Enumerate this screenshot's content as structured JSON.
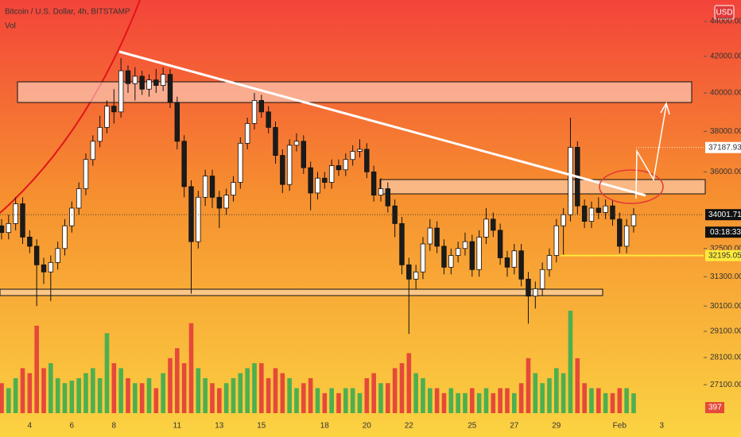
{
  "chart_data": {
    "type": "candlestick",
    "title": "Bitcoin / U.S. Dollar, 4h, BITSTAMP",
    "currency": "USD",
    "log_scale": true,
    "ylim": [
      26090,
      45280
    ],
    "yticks": [
      {
        "value": 44000,
        "label": "44000.00"
      },
      {
        "value": 42000,
        "label": "42000.00"
      },
      {
        "value": 40000,
        "label": "40000.00"
      },
      {
        "value": 38000,
        "label": "38000.00"
      },
      {
        "value": 36000,
        "label": "36000.00"
      },
      {
        "value": 32500,
        "label": "32500.00"
      },
      {
        "value": 31300,
        "label": "31300.00"
      },
      {
        "value": 30100,
        "label": "30100.00"
      },
      {
        "value": 29100,
        "label": "29100.00"
      },
      {
        "value": 28100,
        "label": "28100.00"
      },
      {
        "value": 27100,
        "label": "27100.00"
      }
    ],
    "categories": [
      null,
      null,
      null,
      null,
      "4",
      null,
      null,
      null,
      null,
      null,
      "6",
      null,
      null,
      null,
      null,
      null,
      "8",
      null,
      null,
      null,
      null,
      null,
      null,
      null,
      null,
      "11",
      null,
      null,
      null,
      null,
      null,
      "13",
      null,
      null,
      null,
      null,
      null,
      "15",
      null,
      null,
      null,
      null,
      null,
      null,
      null,
      null,
      "18",
      null,
      null,
      null,
      null,
      null,
      "20",
      null,
      null,
      null,
      null,
      null,
      "22",
      null,
      null,
      null,
      null,
      null,
      null,
      null,
      null,
      "25",
      null,
      null,
      null,
      null,
      null,
      "27",
      null,
      null,
      null,
      null,
      null,
      "29",
      null,
      null,
      null,
      null,
      null,
      null,
      null,
      null,
      "Feb",
      null,
      null,
      null,
      null,
      null,
      "3"
    ],
    "open": [
      33500,
      33200,
      33600,
      34500,
      33000,
      32600,
      31800,
      31500,
      31900,
      32500,
      33500,
      34300,
      35200,
      36600,
      37500,
      38200,
      39300,
      39000,
      41200,
      40500,
      40900,
      40200,
      40700,
      40400,
      41000,
      39500,
      37500,
      35300,
      32800,
      34800,
      35800,
      34800,
      34300,
      34900,
      35500,
      37400,
      38400,
      39600,
      39000,
      38200,
      36800,
      35400,
      37300,
      37500,
      36200,
      35000,
      35700,
      35500,
      36300,
      36100,
      36600,
      37000,
      37100,
      36000,
      34900,
      35200,
      34400,
      33600,
      31800,
      31200,
      31500,
      32700,
      33400,
      32600,
      31700,
      32200,
      32500,
      32800,
      31600,
      33000,
      33800,
      33300,
      32100,
      31700,
      32400,
      31200,
      30500,
      30800,
      31600,
      32200,
      33500,
      34000,
      37200,
      34400,
      33700,
      34300,
      34100,
      34400,
      33800,
      32600,
      33500,
      null,
      null,
      null,
      null
    ],
    "high": [
      33800,
      34000,
      34800,
      34800,
      33300,
      32900,
      32100,
      32200,
      32800,
      33800,
      34600,
      35500,
      36900,
      37800,
      38800,
      39600,
      40200,
      41900,
      41500,
      41400,
      41200,
      41000,
      41300,
      41400,
      41300,
      39800,
      37800,
      35600,
      35100,
      36100,
      36100,
      35100,
      35200,
      35800,
      37700,
      38700,
      40000,
      39900,
      39300,
      38500,
      37100,
      37600,
      37900,
      37800,
      36500,
      36000,
      36000,
      36600,
      36600,
      36900,
      37300,
      37600,
      37400,
      36300,
      35700,
      35500,
      34700,
      33900,
      32100,
      31800,
      33000,
      33800,
      33700,
      32900,
      32500,
      32800,
      33200,
      33100,
      33300,
      34300,
      34100,
      33600,
      32400,
      32700,
      32700,
      31500,
      31100,
      31900,
      32500,
      33800,
      34300,
      38700,
      37500,
      34700,
      34600,
      34800,
      34700,
      34700,
      34100,
      33800,
      34300,
      null,
      null,
      null,
      null
    ],
    "low": [
      32900,
      32900,
      33300,
      32700,
      32300,
      30100,
      31000,
      30300,
      31600,
      32200,
      33200,
      34000,
      34900,
      36300,
      37200,
      37900,
      38400,
      38700,
      40000,
      39600,
      39900,
      39800,
      40000,
      40100,
      39200,
      37100,
      34800,
      30600,
      32500,
      34400,
      34300,
      33400,
      34000,
      34600,
      35200,
      37100,
      38100,
      38700,
      37900,
      36400,
      35000,
      35100,
      37000,
      35900,
      34200,
      34700,
      35200,
      35200,
      35800,
      35800,
      36300,
      36700,
      35700,
      34600,
      34600,
      34100,
      33000,
      31400,
      29000,
      30800,
      31200,
      32400,
      32300,
      31400,
      31400,
      31900,
      32200,
      31300,
      31300,
      32700,
      33000,
      31800,
      31300,
      31400,
      30900,
      29400,
      30000,
      30500,
      31300,
      31900,
      32200,
      33700,
      34000,
      33400,
      33400,
      33800,
      33800,
      33500,
      32300,
      32300,
      33200,
      null,
      null,
      null,
      null
    ],
    "close": [
      33200,
      33600,
      34500,
      33000,
      32600,
      31800,
      31500,
      31900,
      32500,
      33500,
      34300,
      35200,
      36600,
      37500,
      38200,
      39300,
      39000,
      41200,
      40500,
      40900,
      40200,
      40700,
      40400,
      41000,
      39500,
      37500,
      35300,
      32800,
      34800,
      35800,
      34800,
      34300,
      34900,
      35500,
      37400,
      38400,
      39600,
      39000,
      38200,
      36800,
      35400,
      37300,
      37500,
      36200,
      35000,
      35700,
      35500,
      36300,
      36100,
      36600,
      37000,
      37100,
      36000,
      34900,
      35200,
      34400,
      33600,
      31800,
      31200,
      31500,
      32700,
      33400,
      32600,
      31700,
      32200,
      32500,
      32800,
      31600,
      33000,
      33800,
      33300,
      32100,
      31700,
      32400,
      31200,
      30500,
      30800,
      31600,
      32200,
      33500,
      34000,
      37200,
      34400,
      33700,
      34300,
      34100,
      34400,
      33800,
      32600,
      33500,
      34000,
      null,
      null,
      null,
      null
    ],
    "candle_colors": {
      "up": "#ffffff",
      "down": "#1b1b1b"
    },
    "volume": {
      "name": "Vol",
      "ylim": [
        0,
        2400
      ],
      "colors": {
        "up": "#4caf50",
        "down": "#e5493a"
      },
      "values": [
        600,
        500,
        700,
        900,
        800,
        1750,
        900,
        1000,
        700,
        600,
        650,
        700,
        800,
        900,
        700,
        1600,
        1000,
        900,
        700,
        600,
        600,
        700,
        500,
        800,
        1100,
        1300,
        1000,
        1800,
        900,
        700,
        600,
        500,
        600,
        700,
        800,
        900,
        1000,
        1000,
        700,
        900,
        800,
        700,
        500,
        600,
        700,
        500,
        400,
        500,
        400,
        500,
        500,
        400,
        700,
        800,
        600,
        600,
        900,
        1000,
        1200,
        800,
        700,
        500,
        500,
        400,
        500,
        400,
        400,
        500,
        400,
        500,
        400,
        500,
        500,
        400,
        600,
        1100,
        800,
        600,
        700,
        900,
        800,
        2050,
        1100,
        600,
        500,
        500,
        400,
        400,
        500,
        500,
        397,
        null,
        null,
        null,
        null
      ]
    },
    "price_labels": [
      {
        "value": 37187.93,
        "color": "#ffffff",
        "text_color": "#333333"
      },
      {
        "value": 34001.71,
        "color": "#111111",
        "text_color": "#ffffff"
      },
      {
        "value": 32195.05,
        "color": "#ffeb3b",
        "text_color": "#333333"
      }
    ],
    "countdown": "03:18:33"
  }
}
